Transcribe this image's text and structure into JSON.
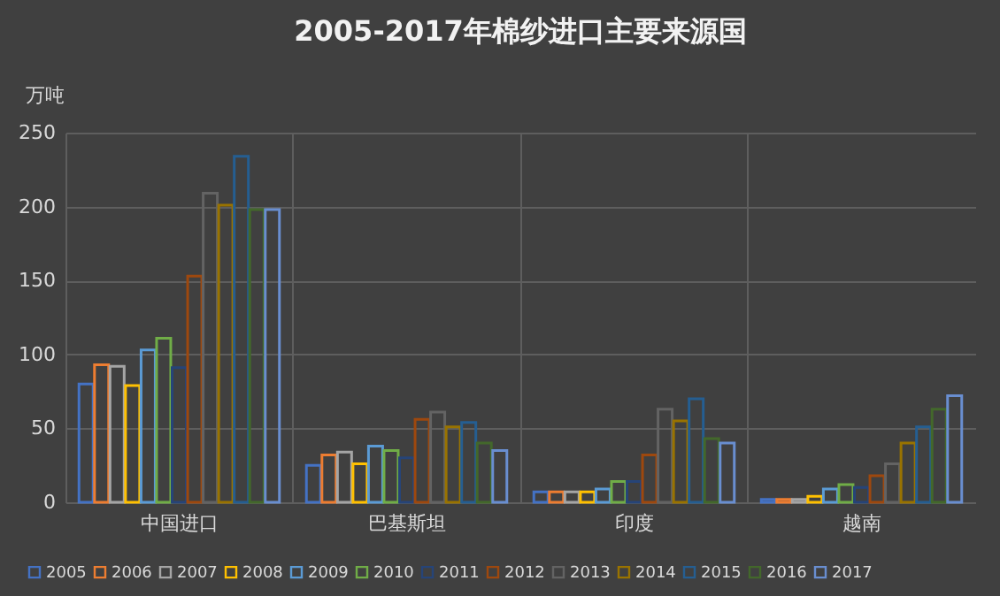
{
  "chart_data": {
    "type": "bar",
    "title": "2005-2017年棉纱进口主要来源国",
    "ylabel": "万吨",
    "categories": [
      "中国进口",
      "巴基斯坦",
      "印度",
      "越南"
    ],
    "series": [
      {
        "name": "2005",
        "color": "#4472c4",
        "values": [
          80,
          25,
          7,
          2
        ]
      },
      {
        "name": "2006",
        "color": "#ed7d31",
        "values": [
          93,
          32,
          7,
          2
        ]
      },
      {
        "name": "2007",
        "color": "#a5a5a5",
        "values": [
          92,
          34,
          7,
          2
        ]
      },
      {
        "name": "2008",
        "color": "#ffc000",
        "values": [
          79,
          26,
          7,
          4
        ]
      },
      {
        "name": "2009",
        "color": "#5b9bd5",
        "values": [
          103,
          38,
          9,
          9
        ]
      },
      {
        "name": "2010",
        "color": "#70ad47",
        "values": [
          111,
          35,
          14,
          12
        ]
      },
      {
        "name": "2011",
        "color": "#264478",
        "values": [
          91,
          30,
          14,
          10
        ]
      },
      {
        "name": "2012",
        "color": "#9e480e",
        "values": [
          153,
          56,
          32,
          18
        ]
      },
      {
        "name": "2013",
        "color": "#636363",
        "values": [
          209,
          61,
          63,
          26
        ]
      },
      {
        "name": "2014",
        "color": "#997300",
        "values": [
          201,
          51,
          55,
          40
        ]
      },
      {
        "name": "2015",
        "color": "#255e91",
        "values": [
          234,
          54,
          70,
          51
        ]
      },
      {
        "name": "2016",
        "color": "#43682b",
        "values": [
          198,
          40,
          43,
          63
        ]
      },
      {
        "name": "2017",
        "color": "#698ed0",
        "values": [
          198,
          35,
          40,
          72
        ]
      }
    ],
    "ylim": [
      0,
      250
    ],
    "yticks": [
      0,
      50,
      100,
      150,
      200,
      250
    ],
    "grid": true,
    "legend": "bottom"
  }
}
